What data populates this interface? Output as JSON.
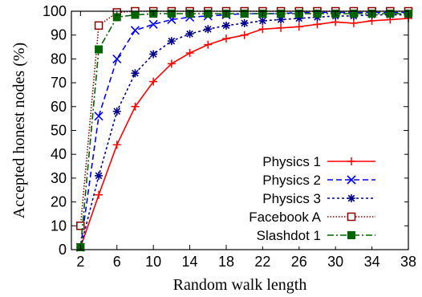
{
  "chart_data": {
    "type": "line",
    "xlabel": "Random walk length",
    "ylabel": "Accepted honest nodes (%)",
    "xlim": [
      1,
      38
    ],
    "ylim": [
      0,
      100
    ],
    "x_ticks": [
      2,
      6,
      10,
      14,
      18,
      22,
      26,
      30,
      34,
      38
    ],
    "x_tick_labels": [
      "2",
      "6",
      "10",
      "14",
      "18",
      "22",
      "26",
      "30",
      "34",
      "38"
    ],
    "y_ticks": [
      0,
      10,
      20,
      30,
      40,
      50,
      60,
      70,
      80,
      90,
      100
    ],
    "y_tick_labels": [
      "0",
      "10",
      "20",
      "30",
      "40",
      "50",
      "60",
      "70",
      "80",
      "90",
      "100"
    ],
    "legend_position": "bottom-right",
    "series": [
      {
        "name": "Physics 1",
        "color": "#ff0000",
        "dash": "solid",
        "marker": "plus",
        "x": [
          2,
          4,
          6,
          8,
          10,
          12,
          14,
          16,
          18,
          20,
          22,
          24,
          26,
          28,
          30,
          32,
          34,
          36,
          38
        ],
        "values": [
          1,
          23,
          44,
          60,
          70.5,
          78,
          82.5,
          86,
          88.5,
          90,
          92.5,
          93,
          93.5,
          94.5,
          95.5,
          95,
          96,
          96.5,
          97
        ]
      },
      {
        "name": "Physics 2",
        "color": "#0000ff",
        "dash": "dashed",
        "marker": "x",
        "x": [
          2,
          4,
          6,
          8,
          10,
          12,
          14,
          16,
          18,
          20,
          22,
          24,
          26,
          28,
          30,
          32,
          34,
          36,
          38
        ],
        "values": [
          1,
          56,
          80,
          92,
          94.5,
          96.5,
          97.5,
          98,
          98.5,
          99,
          99,
          99,
          99.5,
          99.5,
          99.5,
          99.5,
          99.5,
          99.5,
          99.5
        ]
      },
      {
        "name": "Physics 3",
        "color": "#00008b",
        "dash": "dotted",
        "marker": "star",
        "x": [
          2,
          4,
          6,
          8,
          10,
          12,
          14,
          16,
          18,
          20,
          22,
          24,
          26,
          28,
          30,
          32,
          34,
          36,
          38
        ],
        "values": [
          1,
          31,
          58,
          74,
          82,
          87.5,
          90.5,
          92.5,
          94,
          95,
          96,
          96.5,
          97,
          97.5,
          98,
          98,
          98.5,
          98.5,
          98.5
        ]
      },
      {
        "name": "Facebook A",
        "color": "#8b0000",
        "dash": "fine-dotted",
        "marker": "open-square",
        "x": [
          2,
          4,
          6,
          8,
          10,
          12,
          14,
          16,
          18,
          20,
          22,
          24,
          26,
          28,
          30,
          32,
          34,
          36,
          38
        ],
        "values": [
          10,
          94,
          99.5,
          100,
          100,
          100,
          100,
          100,
          100,
          100,
          100,
          100,
          100,
          100,
          100,
          100,
          100,
          100,
          100
        ]
      },
      {
        "name": "Slashdot 1",
        "color": "#006400",
        "dash": "dash-dot",
        "marker": "filled-square",
        "x": [
          2,
          4,
          6,
          8,
          10,
          12,
          14,
          16,
          18,
          20,
          22,
          24,
          26,
          28,
          30,
          32,
          34,
          36,
          38
        ],
        "values": [
          1,
          84,
          97.5,
          98.5,
          99,
          99,
          99,
          99,
          99,
          99,
          99,
          99,
          99,
          99,
          99,
          99,
          99,
          99,
          99
        ]
      }
    ]
  }
}
